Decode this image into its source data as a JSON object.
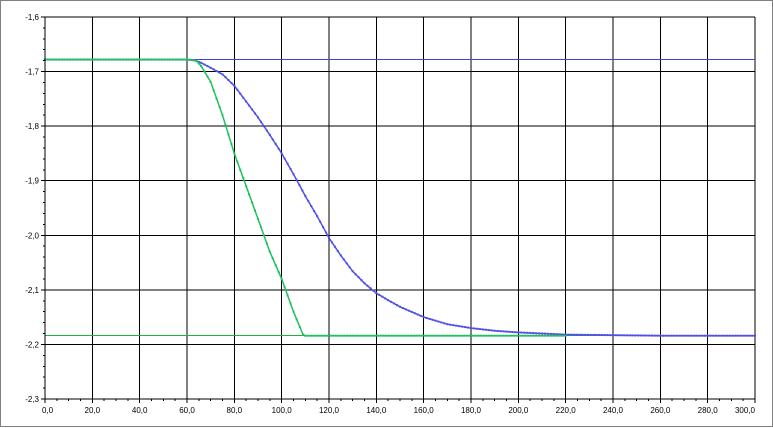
{
  "chart_data": {
    "type": "line",
    "title": "",
    "xlabel": "",
    "ylabel": "",
    "xlim": [
      0,
      300
    ],
    "ylim": [
      -2.3,
      -1.6
    ],
    "grid": true,
    "legend": "none",
    "x_ticks": [
      0,
      20,
      40,
      60,
      80,
      100,
      120,
      140,
      160,
      180,
      200,
      220,
      240,
      260,
      280,
      300
    ],
    "x_tick_labels": [
      "0,0",
      "20,0",
      "40,0",
      "60,0",
      "80,0",
      "100,0",
      "120,0",
      "140,0",
      "160,0",
      "180,0",
      "200,0",
      "220,0",
      "240,0",
      "260,0",
      "280,0",
      "300,0"
    ],
    "y_ticks": [
      -1.6,
      -1.7,
      -1.8,
      -1.9,
      -2.0,
      -2.1,
      -2.2,
      -2.3
    ],
    "y_tick_labels": [
      "-1,6",
      "-1,7",
      "-1,8",
      "-1,9",
      "-2,0",
      "-2,1",
      "-2,2",
      "-2,3"
    ],
    "reference_lines": [
      {
        "y": -1.678,
        "color": "#4040e0"
      },
      {
        "y": -2.184,
        "color": "#20b040"
      }
    ],
    "series": [
      {
        "color": "#5050e6",
        "x": [
          0,
          20,
          40,
          60,
          63,
          66,
          70,
          75,
          80,
          85,
          90,
          95,
          100,
          105,
          110,
          115,
          120,
          125,
          130,
          135,
          140,
          145,
          150,
          160,
          170,
          180,
          190,
          200,
          210,
          220,
          240,
          260,
          280,
          300
        ],
        "y": [
          -1.678,
          -1.678,
          -1.678,
          -1.678,
          -1.679,
          -1.684,
          -1.693,
          -1.705,
          -1.726,
          -1.755,
          -1.784,
          -1.816,
          -1.85,
          -1.888,
          -1.928,
          -1.965,
          -2.005,
          -2.037,
          -2.066,
          -2.088,
          -2.106,
          -2.119,
          -2.131,
          -2.15,
          -2.163,
          -2.17,
          -2.175,
          -2.178,
          -2.18,
          -2.182,
          -2.183,
          -2.184,
          -2.184,
          -2.184
        ]
      },
      {
        "color": "#20c060",
        "x": [
          0,
          20,
          40,
          60,
          64,
          66,
          70,
          75,
          80,
          85,
          90,
          95,
          100,
          105,
          109,
          110,
          130,
          150,
          170,
          190,
          210,
          220
        ],
        "y": [
          -1.678,
          -1.678,
          -1.678,
          -1.678,
          -1.68,
          -1.69,
          -1.719,
          -1.78,
          -1.85,
          -1.91,
          -1.97,
          -2.03,
          -2.08,
          -2.14,
          -2.182,
          -2.184,
          -2.184,
          -2.184,
          -2.184,
          -2.184,
          -2.184,
          -2.184
        ]
      }
    ]
  }
}
